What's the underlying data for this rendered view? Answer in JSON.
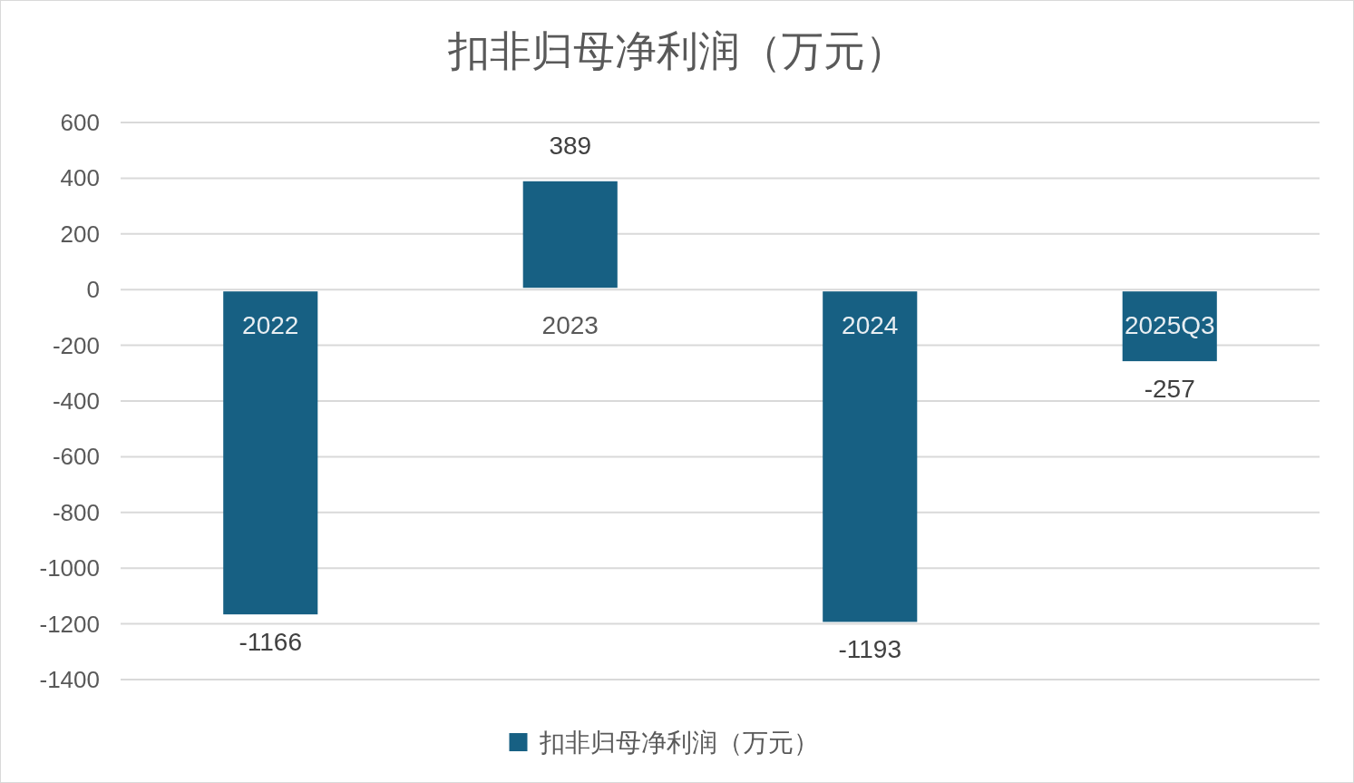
{
  "chart_data": {
    "type": "bar",
    "title": "扣非归母净利润（万元）",
    "categories": [
      "2022",
      "2023",
      "2024",
      "2025Q3"
    ],
    "series": [
      {
        "name": "扣非归母净利润（万元）",
        "color": "#176083",
        "values": [
          -1166,
          389,
          -1193,
          -257
        ]
      }
    ],
    "ylim": [
      -1400,
      600
    ],
    "yticks": [
      -1400,
      -1200,
      -1000,
      -800,
      -600,
      -400,
      -200,
      0,
      200,
      400,
      600
    ],
    "grid": "y",
    "legend": "bottom",
    "data_labels": true
  }
}
